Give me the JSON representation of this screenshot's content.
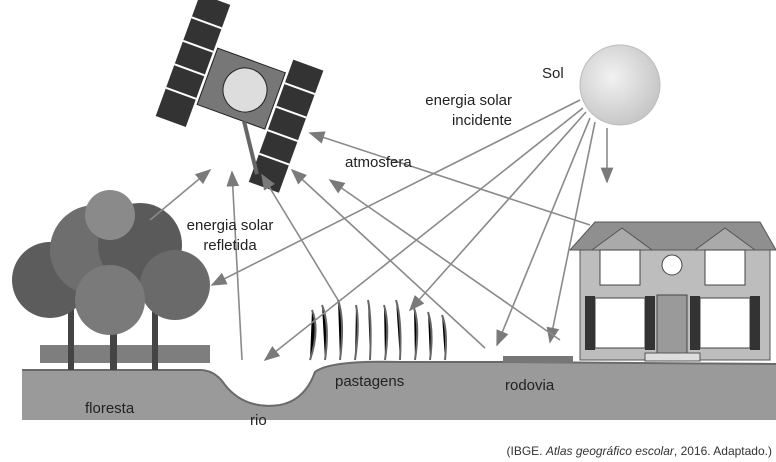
{
  "labels": {
    "sun": "Sol",
    "incident": [
      "energia solar",
      "incidente"
    ],
    "atmosphere": "atmosfera",
    "reflected": [
      "energia solar",
      "refletida"
    ],
    "forest": "floresta",
    "river": "rio",
    "pasture": "pastagens",
    "road": "rodovia"
  },
  "caption": {
    "parts": [
      "(IBGE. ",
      "Atlas geográfico escolar",
      ", 2016. Adaptado.)"
    ]
  }
}
